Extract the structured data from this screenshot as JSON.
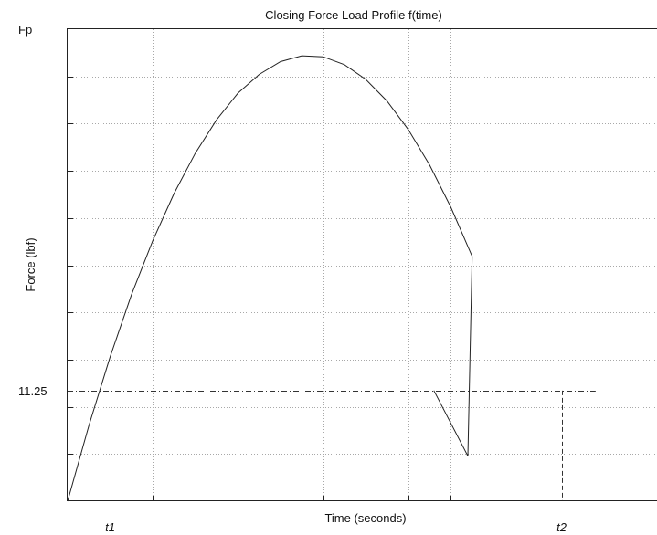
{
  "chart_data": {
    "type": "line",
    "title": "Closing Force Load Profile f(time)",
    "xlabel": "Time (seconds)",
    "ylabel": "Force (lbf)",
    "grid": true,
    "xlim": [
      0,
      10
    ],
    "ylim": [
      0,
      48
    ],
    "y_tick_labels": [
      {
        "value": 48,
        "label": "Fp"
      },
      {
        "value": 11.25,
        "label": "11.25"
      }
    ],
    "x_grid_values": [
      1,
      2,
      3,
      4,
      5,
      6,
      7,
      8,
      9
    ],
    "y_grid_values": [
      4.8,
      9.6,
      14.4,
      19.2,
      24,
      28.8,
      33.6,
      38.4,
      43.2
    ],
    "series": [
      {
        "x": [
          0,
          0.5,
          1,
          1.5,
          2,
          2.5,
          3,
          3.5,
          4,
          4.5,
          5,
          5.5,
          6,
          6.5,
          7,
          7.5,
          8,
          8.5,
          9,
          9.5,
          9.4,
          8.6
        ],
        "y": [
          0,
          7.7,
          14.7,
          21.0,
          26.5,
          31.3,
          35.4,
          38.8,
          41.5,
          43.4,
          44.7,
          45.3,
          45.2,
          44.4,
          42.9,
          40.7,
          37.8,
          34.2,
          29.9,
          24.9,
          4.6,
          11.25
        ]
      }
    ],
    "reference_lines": [
      {
        "orientation": "horizontal",
        "y": 11.25,
        "x_from": 0,
        "x_to": 12.4
      },
      {
        "orientation": "vertical",
        "x": 1.0,
        "y_from": 0,
        "y_to": 11.25
      },
      {
        "orientation": "vertical",
        "x": 11.6,
        "y_from": 0,
        "y_to": 11.25
      }
    ],
    "x_markers": [
      {
        "value": 1.0,
        "label": "t1"
      },
      {
        "value": 11.6,
        "label": "t2"
      }
    ]
  }
}
